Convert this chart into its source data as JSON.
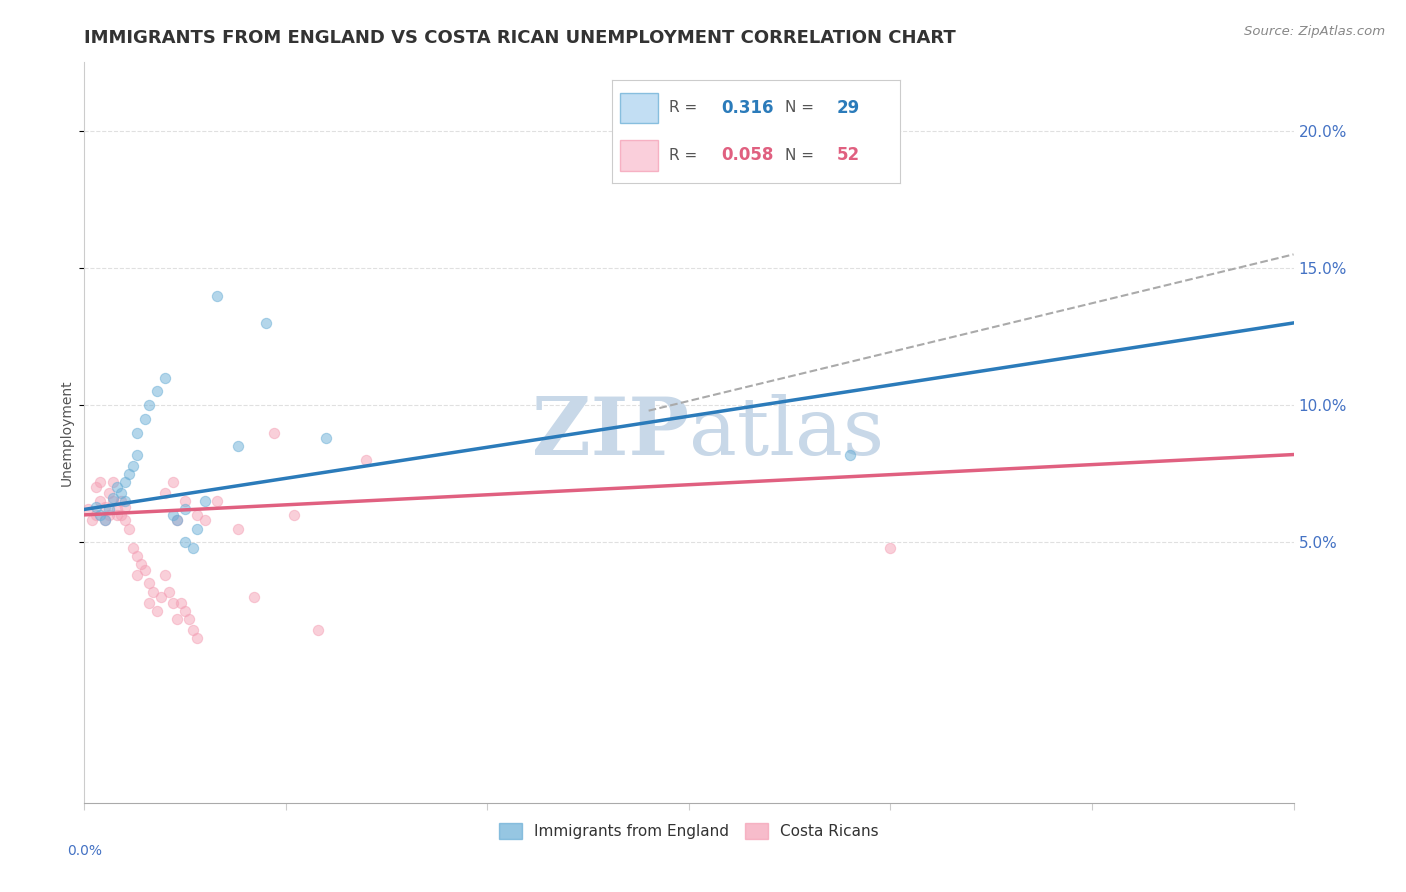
{
  "title": "IMMIGRANTS FROM ENGLAND VS COSTA RICAN UNEMPLOYMENT CORRELATION CHART",
  "source": "Source: ZipAtlas.com",
  "ylabel": "Unemployment",
  "right_ytick_vals": [
    0.05,
    0.1,
    0.15,
    0.2
  ],
  "legend_labels": [
    "Immigrants from England",
    "Costa Ricans"
  ],
  "blue_scatter": [
    [
      0.003,
      0.063
    ],
    [
      0.004,
      0.06
    ],
    [
      0.005,
      0.058
    ],
    [
      0.006,
      0.062
    ],
    [
      0.007,
      0.066
    ],
    [
      0.008,
      0.07
    ],
    [
      0.009,
      0.068
    ],
    [
      0.01,
      0.072
    ],
    [
      0.01,
      0.065
    ],
    [
      0.011,
      0.075
    ],
    [
      0.012,
      0.078
    ],
    [
      0.013,
      0.082
    ],
    [
      0.013,
      0.09
    ],
    [
      0.015,
      0.095
    ],
    [
      0.016,
      0.1
    ],
    [
      0.018,
      0.105
    ],
    [
      0.02,
      0.11
    ],
    [
      0.022,
      0.06
    ],
    [
      0.023,
      0.058
    ],
    [
      0.025,
      0.062
    ],
    [
      0.025,
      0.05
    ],
    [
      0.027,
      0.048
    ],
    [
      0.028,
      0.055
    ],
    [
      0.03,
      0.065
    ],
    [
      0.033,
      0.14
    ],
    [
      0.038,
      0.085
    ],
    [
      0.045,
      0.13
    ],
    [
      0.06,
      0.088
    ],
    [
      0.19,
      0.082
    ]
  ],
  "pink_scatter": [
    [
      0.001,
      0.062
    ],
    [
      0.002,
      0.058
    ],
    [
      0.003,
      0.06
    ],
    [
      0.003,
      0.07
    ],
    [
      0.004,
      0.072
    ],
    [
      0.004,
      0.065
    ],
    [
      0.005,
      0.058
    ],
    [
      0.005,
      0.063
    ],
    [
      0.006,
      0.06
    ],
    [
      0.006,
      0.068
    ],
    [
      0.007,
      0.072
    ],
    [
      0.007,
      0.065
    ],
    [
      0.008,
      0.06
    ],
    [
      0.008,
      0.062
    ],
    [
      0.009,
      0.06
    ],
    [
      0.009,
      0.065
    ],
    [
      0.01,
      0.058
    ],
    [
      0.01,
      0.063
    ],
    [
      0.011,
      0.055
    ],
    [
      0.012,
      0.048
    ],
    [
      0.013,
      0.045
    ],
    [
      0.013,
      0.038
    ],
    [
      0.014,
      0.042
    ],
    [
      0.015,
      0.04
    ],
    [
      0.016,
      0.035
    ],
    [
      0.016,
      0.028
    ],
    [
      0.017,
      0.032
    ],
    [
      0.018,
      0.025
    ],
    [
      0.019,
      0.03
    ],
    [
      0.02,
      0.038
    ],
    [
      0.021,
      0.032
    ],
    [
      0.022,
      0.028
    ],
    [
      0.023,
      0.022
    ],
    [
      0.024,
      0.028
    ],
    [
      0.025,
      0.025
    ],
    [
      0.026,
      0.022
    ],
    [
      0.027,
      0.018
    ],
    [
      0.028,
      0.015
    ],
    [
      0.02,
      0.068
    ],
    [
      0.022,
      0.072
    ],
    [
      0.023,
      0.058
    ],
    [
      0.025,
      0.065
    ],
    [
      0.028,
      0.06
    ],
    [
      0.03,
      0.058
    ],
    [
      0.033,
      0.065
    ],
    [
      0.038,
      0.055
    ],
    [
      0.042,
      0.03
    ],
    [
      0.047,
      0.09
    ],
    [
      0.052,
      0.06
    ],
    [
      0.058,
      0.018
    ],
    [
      0.07,
      0.08
    ],
    [
      0.2,
      0.048
    ]
  ],
  "blue_line": [
    [
      0.0,
      0.062
    ],
    [
      0.3,
      0.13
    ]
  ],
  "blue_dashed_line": [
    [
      0.14,
      0.098
    ],
    [
      0.3,
      0.155
    ]
  ],
  "pink_line": [
    [
      0.0,
      0.06
    ],
    [
      0.3,
      0.082
    ]
  ],
  "watermark_zip": "ZIP",
  "watermark_atlas": "atlas",
  "watermark_color": "#c8d8e8",
  "xlim": [
    0.0,
    0.3
  ],
  "ylim": [
    -0.045,
    0.225
  ],
  "background_color": "#ffffff",
  "grid_color": "#e0e0e0",
  "title_fontsize": 13,
  "axis_label_fontsize": 10,
  "scatter_size": 55,
  "scatter_alpha": 0.5,
  "blue_color": "#6aaed6",
  "blue_line_color": "#2b7bba",
  "pink_color": "#f4a0b5",
  "pink_line_color": "#e06080",
  "dashed_color": "#aaaaaa",
  "r_blue_val": "0.316",
  "r_blue_n": "29",
  "r_pink_val": "0.058",
  "r_pink_n": "52"
}
